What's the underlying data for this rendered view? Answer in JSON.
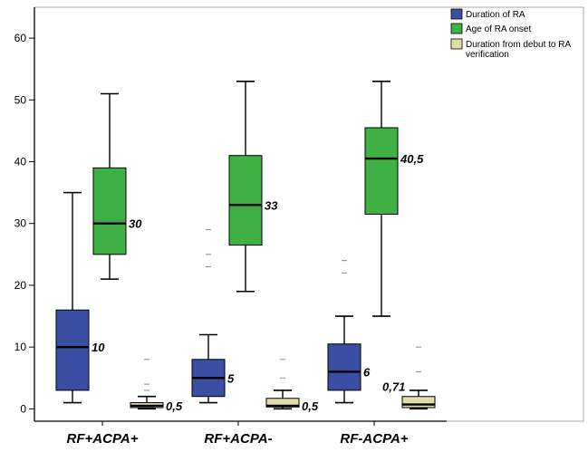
{
  "chart_data": {
    "type": "box",
    "categories": [
      "RF+ACPA+",
      "RF+ACPA-",
      "RF-ACPA+"
    ],
    "ylim": [
      -2,
      65
    ],
    "yticks": [
      0,
      10,
      20,
      30,
      40,
      50,
      60
    ],
    "grid": false,
    "legend_position": "top-right",
    "series": [
      {
        "name": "Duration of RA",
        "color": "#3a4fa3",
        "boxes": [
          {
            "min": 1,
            "q1": 3,
            "median": 10,
            "q3": 16,
            "max": 35,
            "outliers": [],
            "median_label": "10"
          },
          {
            "min": 1,
            "q1": 2,
            "median": 5,
            "q3": 8,
            "max": 12,
            "outliers": [
              23,
              25,
              29
            ],
            "median_label": "5"
          },
          {
            "min": 1,
            "q1": 3,
            "median": 6,
            "q3": 10.5,
            "max": 15,
            "outliers": [
              22,
              24
            ],
            "median_label": "6"
          }
        ]
      },
      {
        "name": "Age of RA onset",
        "color": "#3fb043",
        "boxes": [
          {
            "min": 21,
            "q1": 25,
            "median": 30,
            "q3": 39,
            "max": 51,
            "outliers": [],
            "median_label": "30"
          },
          {
            "min": 19,
            "q1": 26.5,
            "median": 33,
            "q3": 41,
            "max": 53,
            "outliers": [],
            "median_label": "33"
          },
          {
            "min": 15,
            "q1": 31.5,
            "median": 40.5,
            "q3": 45.5,
            "max": 53,
            "outliers": [],
            "median_label": "40,5"
          }
        ]
      },
      {
        "name": "Duration from debut to RA verification",
        "color": "#e2dcaa",
        "boxes": [
          {
            "min": 0,
            "q1": 0.2,
            "median": 0.5,
            "q3": 1,
            "max": 2,
            "outliers": [
              3,
              4,
              8
            ],
            "median_label": "0,5"
          },
          {
            "min": 0,
            "q1": 0.3,
            "median": 0.5,
            "q3": 1.7,
            "max": 3,
            "outliers": [
              5,
              8
            ],
            "median_label": "0,5"
          },
          {
            "min": 0,
            "q1": 0.2,
            "median": 0.71,
            "q3": 2,
            "max": 3,
            "outliers": [
              6,
              10
            ],
            "median_label": "0,71"
          }
        ]
      }
    ]
  }
}
